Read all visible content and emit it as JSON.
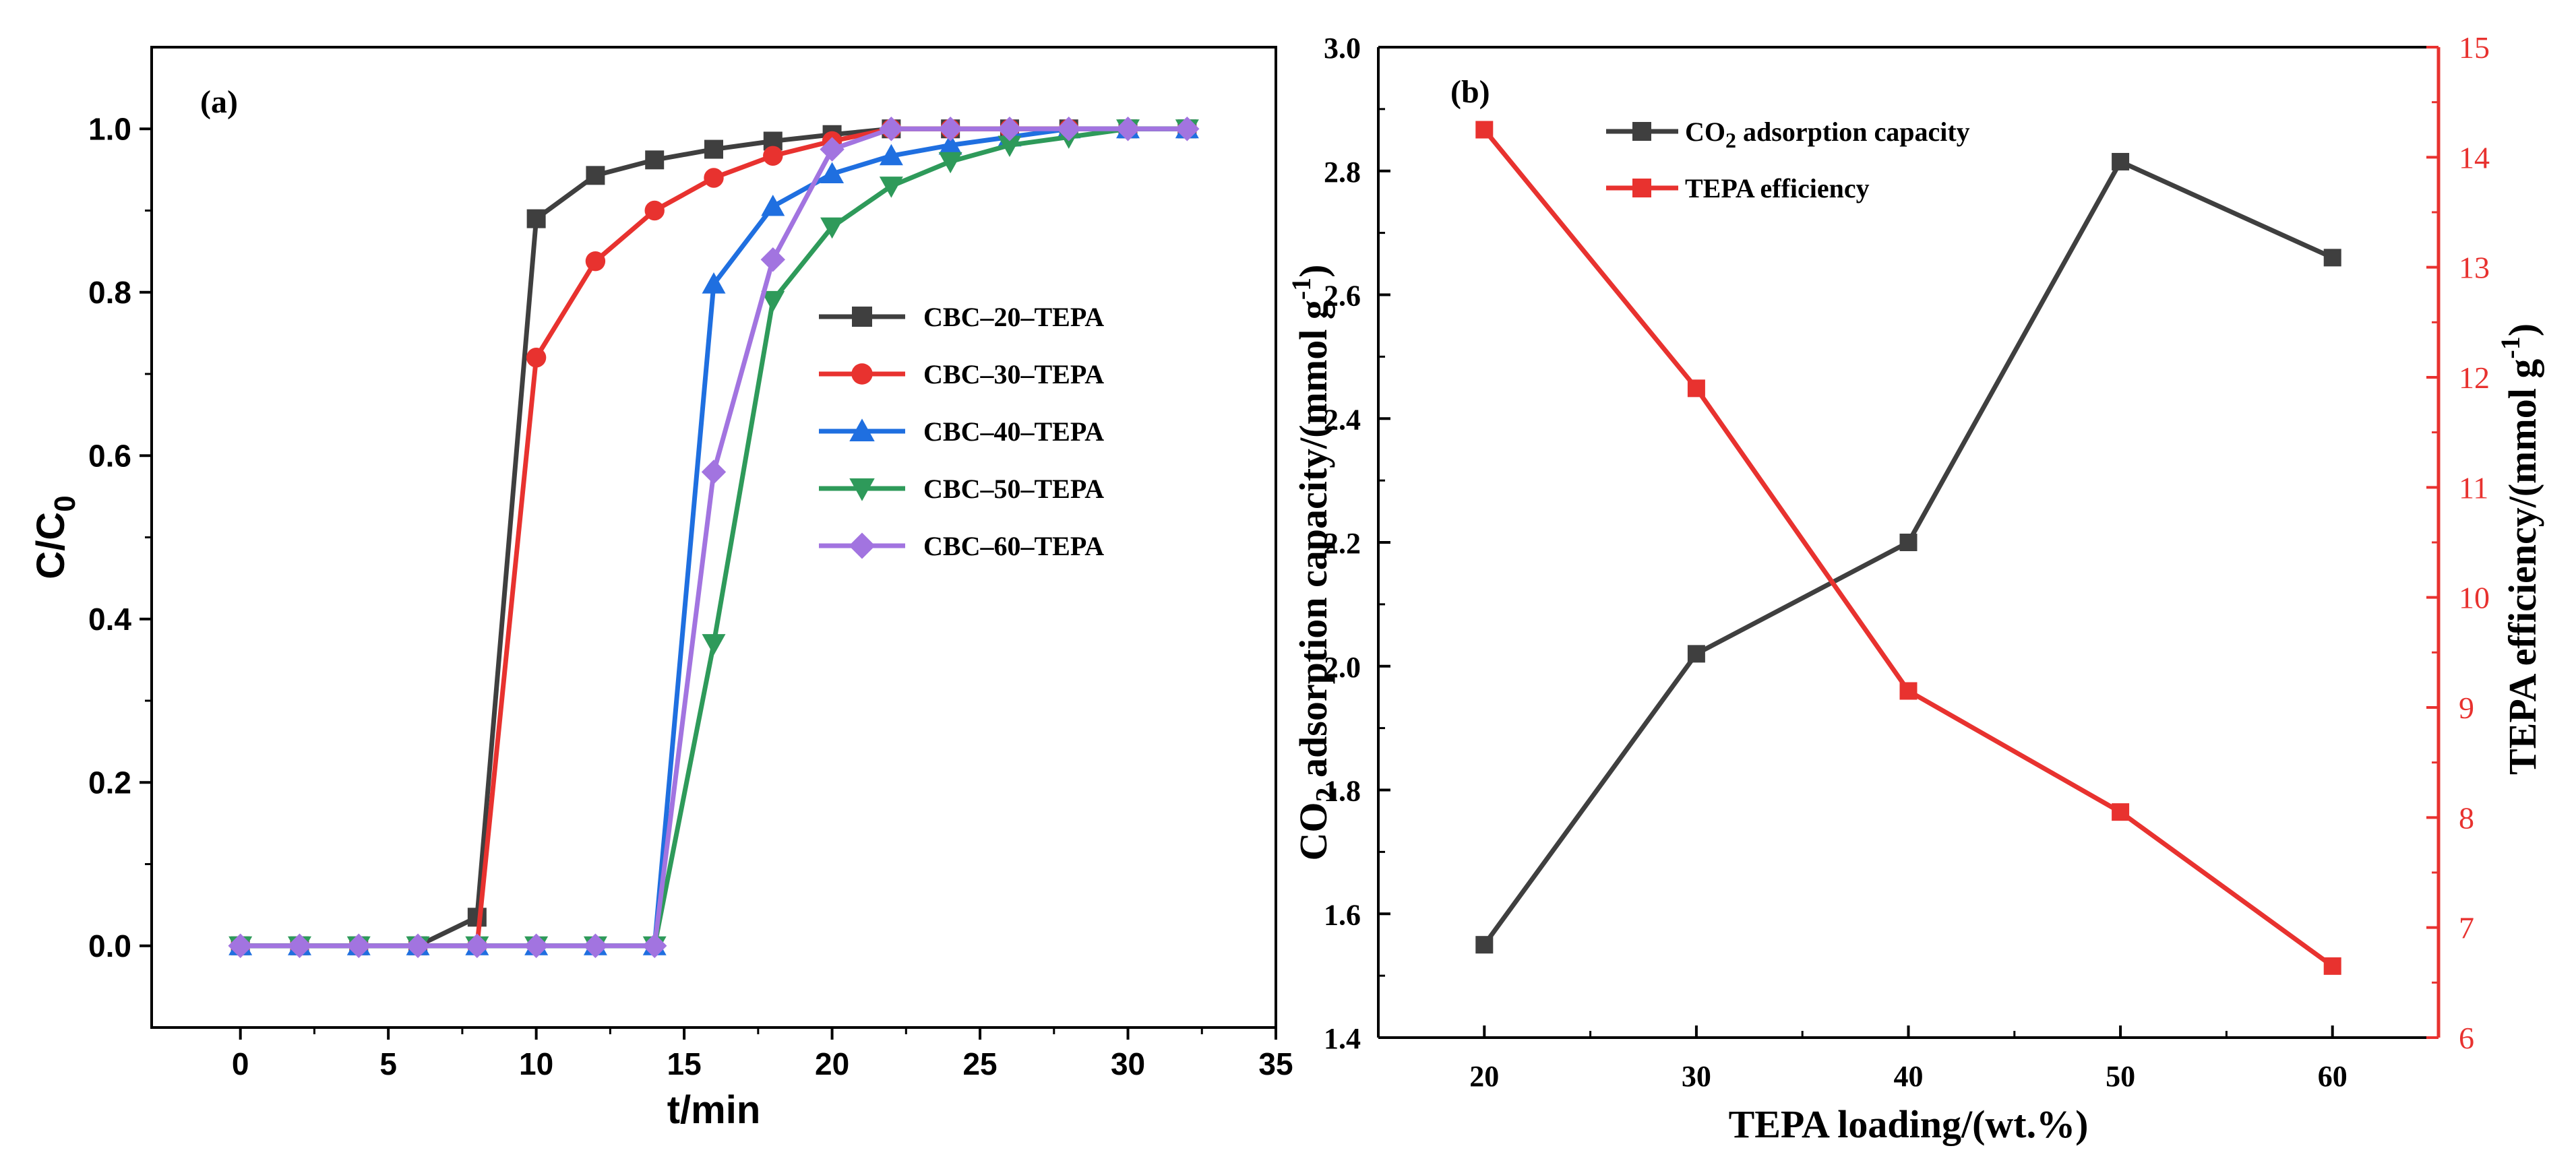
{
  "chart_data": [
    {
      "type": "line",
      "panel_label": "(a)",
      "xlabel": "t/min",
      "ylabel": "C/C0",
      "ylabel_main": "C/C",
      "ylabel_sub": "0",
      "xlim": [
        -3,
        35
      ],
      "ylim": [
        -0.1,
        1.1
      ],
      "xticks": [
        0,
        5,
        10,
        15,
        20,
        25,
        30,
        35
      ],
      "xtick_labels": [
        "0",
        "5",
        "10",
        "15",
        "20",
        "25",
        "30",
        "35"
      ],
      "yticks": [
        0.0,
        0.2,
        0.4,
        0.6,
        0.8,
        1.0
      ],
      "ytick_labels": [
        "0.0",
        "0.2",
        "0.4",
        "0.6",
        "0.8",
        "1.0"
      ],
      "legend_position": "center-right",
      "x": [
        0,
        2,
        4,
        6,
        8,
        10,
        12,
        14,
        16,
        18,
        20,
        22,
        24,
        26,
        28,
        30,
        32
      ],
      "series": [
        {
          "name": "CBC–20–TEPA",
          "color": "#3f3f3f",
          "marker": "square",
          "values": [
            0,
            0,
            0,
            0,
            0.035,
            0.89,
            0.943,
            0.962,
            0.975,
            0.985,
            0.993,
            1.0,
            1.0,
            1.0,
            1.0,
            1.0,
            1.0
          ]
        },
        {
          "name": "CBC–30–TEPA",
          "color": "#e8322f",
          "marker": "circle",
          "values": [
            0,
            0,
            0,
            0,
            0,
            0.72,
            0.838,
            0.9,
            0.94,
            0.967,
            0.985,
            1.0,
            1.0,
            1.0,
            1.0,
            1.0,
            1.0
          ]
        },
        {
          "name": "CBC–40–TEPA",
          "color": "#1f6fe0",
          "marker": "triangle-up",
          "values": [
            0,
            0,
            0,
            0,
            0,
            0,
            0,
            0,
            0.81,
            0.905,
            0.945,
            0.967,
            0.98,
            0.99,
            1.0,
            1.0,
            1.0
          ]
        },
        {
          "name": "CBC–50–TEPA",
          "color": "#2e9a5a",
          "marker": "triangle-down",
          "values": [
            0,
            0,
            0,
            0,
            0,
            0,
            0,
            0,
            0.37,
            0.79,
            0.88,
            0.93,
            0.96,
            0.98,
            0.99,
            1.0,
            1.0
          ]
        },
        {
          "name": "CBC–60–TEPA",
          "color": "#a274e0",
          "marker": "diamond",
          "values": [
            0,
            0,
            0,
            0,
            0,
            0,
            0,
            0,
            0.58,
            0.84,
            0.975,
            1.0,
            1.0,
            1.0,
            1.0,
            1.0,
            1.0
          ]
        }
      ]
    },
    {
      "type": "line",
      "panel_label": "(b)",
      "xlabel": "TEPA loading/(wt.%)",
      "ylabel_left": "CO2 adsorption capacity/(mmol g-1)",
      "ylabel_left_parts": {
        "pre": "CO",
        "sub": "2",
        "mid": " adsorption capacity/(mmol g",
        "sup": "-1",
        "post": ")"
      },
      "ylabel_right": "TEPA efficiency/(mmol g-1)",
      "ylabel_right_parts": {
        "pre": "TEPA efficiency/(mmol g",
        "sup": "-1",
        "post": ")"
      },
      "xlim": [
        15,
        65
      ],
      "ylim_left": [
        1.4,
        3.0
      ],
      "ylim_right": [
        6,
        15
      ],
      "xticks": [
        20,
        30,
        40,
        50,
        60
      ],
      "xtick_labels": [
        "20",
        "30",
        "40",
        "50",
        "60"
      ],
      "yticks_left": [
        1.4,
        1.6,
        1.8,
        2.0,
        2.2,
        2.4,
        2.6,
        2.8,
        3.0
      ],
      "ytick_labels_left": [
        "1.4",
        "1.6",
        "1.8",
        "2.0",
        "2.2",
        "2.4",
        "2.6",
        "2.8",
        "3.0"
      ],
      "yticks_right": [
        6,
        7,
        8,
        9,
        10,
        11,
        12,
        13,
        14,
        15
      ],
      "ytick_labels_right": [
        "6",
        "7",
        "8",
        "9",
        "10",
        "11",
        "12",
        "13",
        "14",
        "15"
      ],
      "legend_position": "top-left",
      "x": [
        20,
        30,
        40,
        50,
        60
      ],
      "series": [
        {
          "name": "CO2 adsorption capacity",
          "legend_parts": {
            "pre": "CO",
            "sub": "2",
            "post": " adsorption capacity"
          },
          "axis": "left",
          "color": "#3f3f3f",
          "marker": "square",
          "values": [
            1.55,
            2.02,
            2.2,
            2.815,
            2.66
          ]
        },
        {
          "name": "TEPA efficiency",
          "legend_parts": {
            "pre": "TEPA efficiency",
            "sub": "",
            "post": ""
          },
          "axis": "right",
          "color": "#e8322f",
          "marker": "square",
          "values": [
            14.25,
            11.9,
            9.15,
            8.05,
            6.65
          ]
        }
      ]
    }
  ]
}
